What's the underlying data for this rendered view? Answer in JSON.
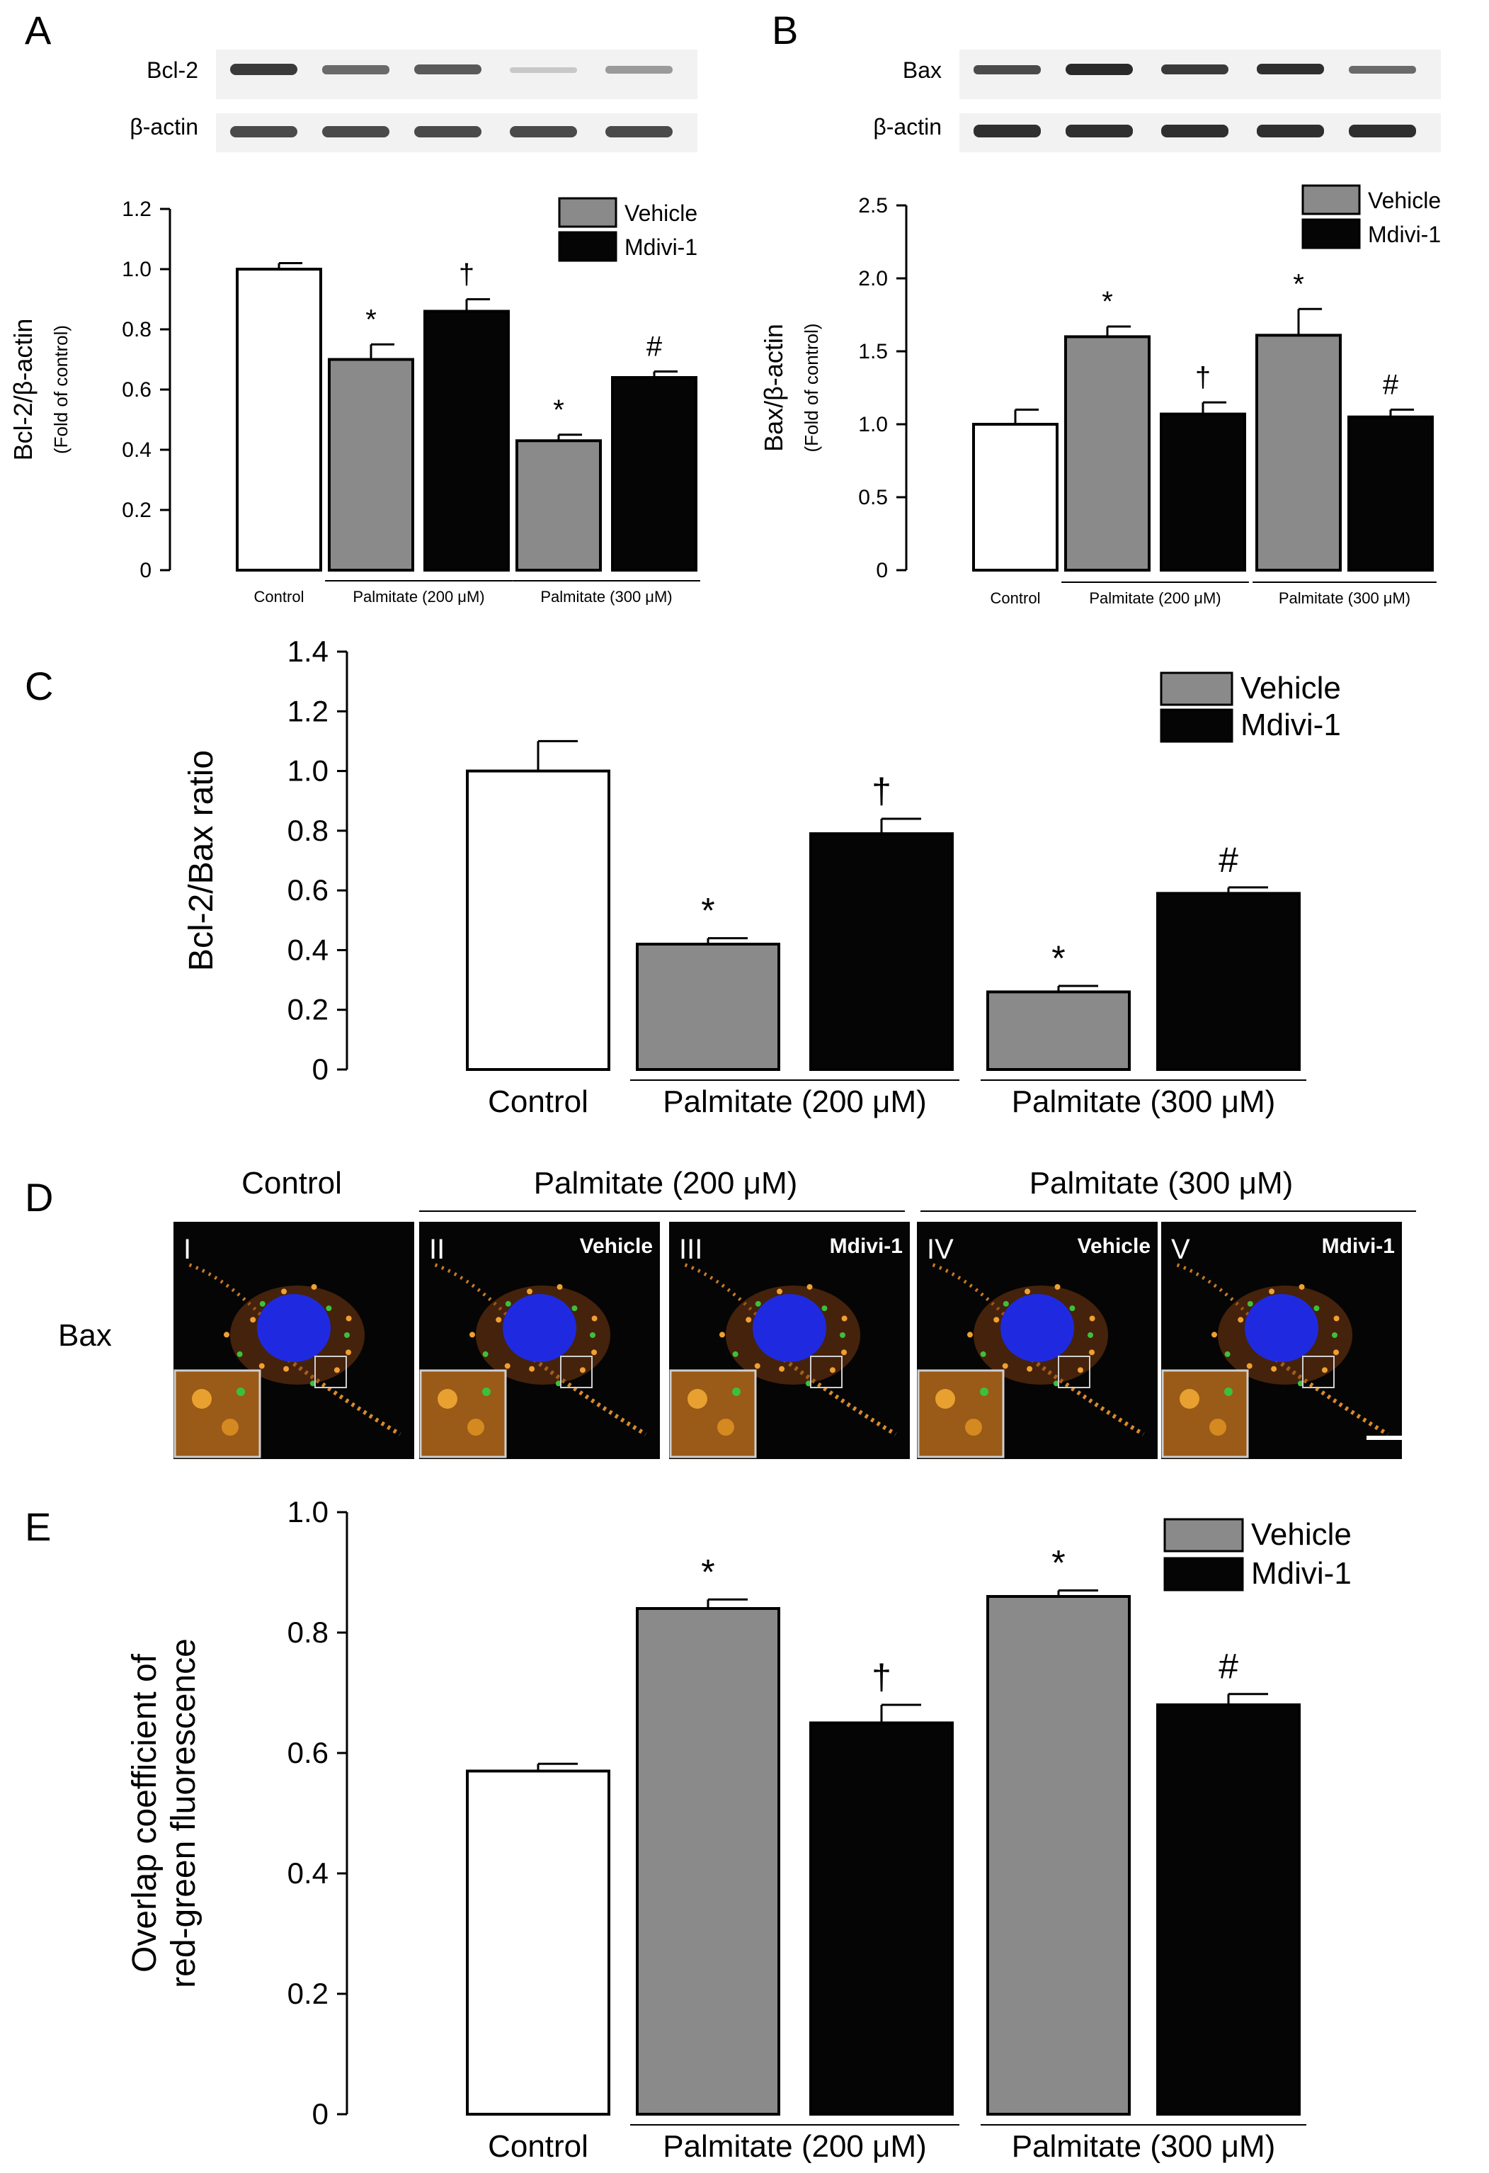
{
  "legend": {
    "vehicle": "Vehicle",
    "mdivi": "Mdivi-1"
  },
  "colors": {
    "control": "#ffffff",
    "vehicle": "#8a8a8a",
    "mdivi": "#050505",
    "axis": "#000000"
  },
  "panels": {
    "A": {
      "letter": "A",
      "blot": {
        "labels": [
          "Bcl-2",
          "β-actin"
        ]
      },
      "chart_data": {
        "type": "bar",
        "title": "",
        "ylabel": "Bcl-2/β-actin",
        "ylabel_sub": "(Fold of control)",
        "ylim": [
          0,
          1.2
        ],
        "yticks": [
          "0",
          "0.2",
          "0.4",
          "0.6",
          "0.8",
          "1.0",
          "1.2"
        ],
        "groups": [
          "Control",
          "Palmitate (200 μM)",
          "Palmitate (300 μM)"
        ],
        "bars": [
          {
            "group": "Control",
            "series": "Control",
            "value": 1.0,
            "error": 0.02,
            "mark": ""
          },
          {
            "group": "Palmitate (200 μM)",
            "series": "Vehicle",
            "value": 0.7,
            "error": 0.05,
            "mark": "*"
          },
          {
            "group": "Palmitate (200 μM)",
            "series": "Mdivi-1",
            "value": 0.86,
            "error": 0.04,
            "mark": "†"
          },
          {
            "group": "Palmitate (300 μM)",
            "series": "Vehicle",
            "value": 0.43,
            "error": 0.02,
            "mark": "*"
          },
          {
            "group": "Palmitate (300 μM)",
            "series": "Mdivi-1",
            "value": 0.64,
            "error": 0.02,
            "mark": "#"
          }
        ]
      }
    },
    "B": {
      "letter": "B",
      "blot": {
        "labels": [
          "Bax",
          "β-actin"
        ]
      },
      "chart_data": {
        "type": "bar",
        "title": "",
        "ylabel": "Bax/β-actin",
        "ylabel_sub": "(Fold of control)",
        "ylim": [
          0,
          2.5
        ],
        "yticks": [
          "0",
          "0.5",
          "1.0",
          "1.5",
          "2.0",
          "2.5"
        ],
        "groups": [
          "Control",
          "Palmitate (200 μM)",
          "Palmitate (300 μM)"
        ],
        "bars": [
          {
            "group": "Control",
            "series": "Control",
            "value": 1.0,
            "error": 0.1,
            "mark": ""
          },
          {
            "group": "Palmitate (200 μM)",
            "series": "Vehicle",
            "value": 1.6,
            "error": 0.07,
            "mark": "*"
          },
          {
            "group": "Palmitate (200 μM)",
            "series": "Mdivi-1",
            "value": 1.07,
            "error": 0.08,
            "mark": "†"
          },
          {
            "group": "Palmitate (300 μM)",
            "series": "Vehicle",
            "value": 1.61,
            "error": 0.18,
            "mark": "*"
          },
          {
            "group": "Palmitate (300 μM)",
            "series": "Mdivi-1",
            "value": 1.05,
            "error": 0.05,
            "mark": "#"
          }
        ]
      }
    },
    "C": {
      "letter": "C",
      "chart_data": {
        "type": "bar",
        "title": "",
        "ylabel": "Bcl-2/Bax ratio",
        "ylim": [
          0,
          1.4
        ],
        "yticks": [
          "0",
          "0.2",
          "0.4",
          "0.6",
          "0.8",
          "1.0",
          "1.2",
          "1.4"
        ],
        "groups": [
          "Control",
          "Palmitate (200 μM)",
          "Palmitate (300 μM)"
        ],
        "bars": [
          {
            "group": "Control",
            "series": "Control",
            "value": 1.0,
            "error": 0.1,
            "mark": ""
          },
          {
            "group": "Palmitate (200 μM)",
            "series": "Vehicle",
            "value": 0.42,
            "error": 0.02,
            "mark": "*"
          },
          {
            "group": "Palmitate (200 μM)",
            "series": "Mdivi-1",
            "value": 0.79,
            "error": 0.05,
            "mark": "†"
          },
          {
            "group": "Palmitate (300 μM)",
            "series": "Vehicle",
            "value": 0.26,
            "error": 0.02,
            "mark": "*"
          },
          {
            "group": "Palmitate (300 μM)",
            "series": "Mdivi-1",
            "value": 0.59,
            "error": 0.02,
            "mark": "#"
          }
        ]
      }
    },
    "D": {
      "letter": "D",
      "row_label": "Bax",
      "headers": [
        "Control",
        "Palmitate (200 μM)",
        "Palmitate (300 μM)"
      ],
      "cells": [
        {
          "numeral": "I",
          "tag": ""
        },
        {
          "numeral": "II",
          "tag": "Vehicle"
        },
        {
          "numeral": "III",
          "tag": "Mdivi-1"
        },
        {
          "numeral": "IV",
          "tag": "Vehicle"
        },
        {
          "numeral": "V",
          "tag": "Mdivi-1"
        }
      ]
    },
    "E": {
      "letter": "E",
      "chart_data": {
        "type": "bar",
        "title": "",
        "ylabel": "Overlap coefficient of",
        "ylabel2": "red-green fluorescence",
        "ylim": [
          0,
          1.0
        ],
        "yticks": [
          "0",
          "0.2",
          "0.4",
          "0.6",
          "0.8",
          "1.0"
        ],
        "groups": [
          "Control",
          "Palmitate (200 μM)",
          "Palmitate (300 μM)"
        ],
        "bars": [
          {
            "group": "Control",
            "series": "Control",
            "value": 0.57,
            "error": 0.012,
            "mark": ""
          },
          {
            "group": "Palmitate (200 μM)",
            "series": "Vehicle",
            "value": 0.84,
            "error": 0.015,
            "mark": "*"
          },
          {
            "group": "Palmitate (200 μM)",
            "series": "Mdivi-1",
            "value": 0.65,
            "error": 0.03,
            "mark": "†"
          },
          {
            "group": "Palmitate (300 μM)",
            "series": "Vehicle",
            "value": 0.86,
            "error": 0.01,
            "mark": "*"
          },
          {
            "group": "Palmitate (300 μM)",
            "series": "Mdivi-1",
            "value": 0.68,
            "error": 0.018,
            "mark": "#"
          }
        ]
      }
    }
  }
}
